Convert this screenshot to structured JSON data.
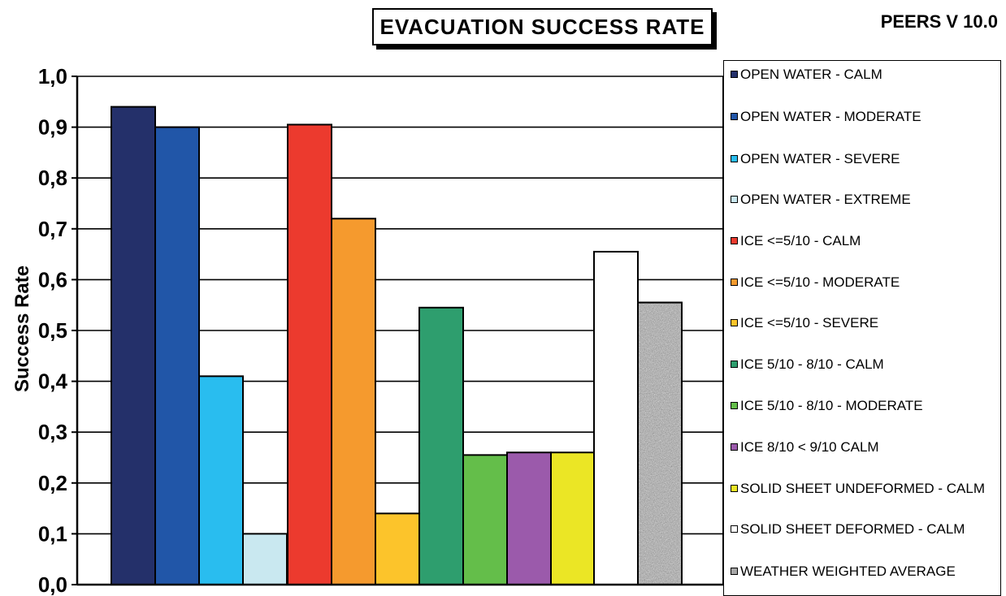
{
  "header": {
    "title": "EVACUATION  SUCCESS RATE",
    "version": "PEERS V 10.0"
  },
  "chart_data": {
    "type": "bar",
    "title": "EVACUATION  SUCCESS RATE",
    "ylabel": "Success Rate",
    "xlabel": "",
    "ylim": [
      0,
      1.0
    ],
    "yticks": [
      "0,0",
      "0,1",
      "0,2",
      "0,3",
      "0,4",
      "0,5",
      "0,6",
      "0,7",
      "0,8",
      "0,9",
      "1,0"
    ],
    "grid": true,
    "legend_position": "right",
    "series": [
      {
        "name": "OPEN WATER - CALM",
        "value": 0.94,
        "color": "#24306a"
      },
      {
        "name": "OPEN WATER - MODERATE",
        "value": 0.9,
        "color": "#2156a8"
      },
      {
        "name": "OPEN WATER - SEVERE",
        "value": 0.41,
        "color": "#29bdef"
      },
      {
        "name": "OPEN WATER - EXTREME",
        "value": 0.1,
        "color": "#c9e8f0"
      },
      {
        "name": "ICE <=5/10 - CALM",
        "value": 0.905,
        "color": "#ec3a2e"
      },
      {
        "name": "ICE <=5/10 - MODERATE",
        "value": 0.72,
        "color": "#f59a2e"
      },
      {
        "name": "ICE <=5/10 - SEVERE",
        "value": 0.14,
        "color": "#fcc42b"
      },
      {
        "name": "ICE 5/10 - 8/10 - CALM",
        "value": 0.545,
        "color": "#2e9e6e"
      },
      {
        "name": "ICE 5/10 - 8/10 - MODERATE",
        "value": 0.255,
        "color": "#64be4a"
      },
      {
        "name": "ICE  8/10 < 9/10 CALM",
        "value": 0.26,
        "color": "#9b5aab"
      },
      {
        "name": "SOLID SHEET UNDEFORMED - CALM",
        "value": 0.26,
        "color": "#ebe625"
      },
      {
        "name": "SOLID SHEET DEFORMED - CALM",
        "value": 0.655,
        "color": "#ffffff"
      },
      {
        "name": "WEATHER WEIGHTED AVERAGE",
        "value": 0.555,
        "color": "#a7a7a7",
        "pattern": "speckled-granite"
      }
    ]
  }
}
